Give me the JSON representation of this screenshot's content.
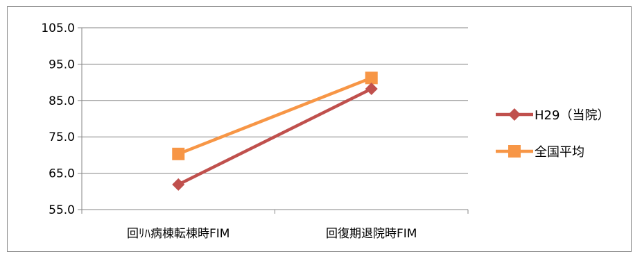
{
  "chart_data": {
    "type": "line",
    "categories": [
      "回ﾘﾊ病棟転棟時FIM",
      "回復期退院時FIM"
    ],
    "y_ticks": [
      "55.0",
      "65.0",
      "75.0",
      "85.0",
      "95.0",
      "105.0"
    ],
    "ylim": [
      55,
      105
    ],
    "grid": "horizontal",
    "legend_position": "right",
    "series": [
      {
        "name": "H29（当院）",
        "values": [
          61.9,
          88.2
        ],
        "color": "#c0504d",
        "marker": "diamond"
      },
      {
        "name": "全国平均",
        "values": [
          70.3,
          91.2
        ],
        "color": "#f79646",
        "marker": "square"
      }
    ]
  }
}
